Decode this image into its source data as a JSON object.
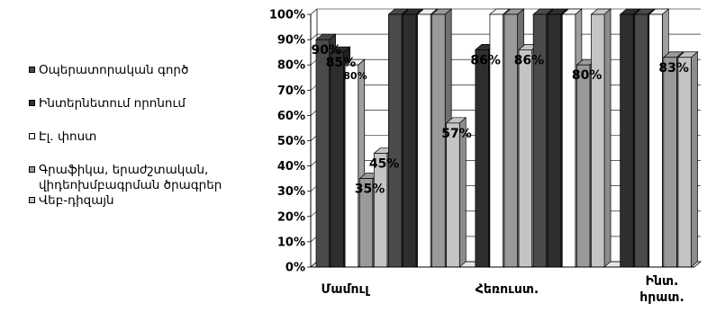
{
  "chart_data": {
    "type": "bar",
    "categories": [
      "Մամուլ",
      "Հեռուստ.",
      "Ինտ. հրատ."
    ],
    "series": [
      {
        "name": "Օպերատորական գործ",
        "color": "#4a4a4a",
        "values": [
          90,
          100,
          100
        ]
      },
      {
        "name": "Ինտերնետում որոնում",
        "color": "#2e2e2e",
        "values": [
          85,
          100,
          100
        ]
      },
      {
        "name": "Էլ. փոստ",
        "color": "#ffffff",
        "values": [
          80,
          100,
          100
        ]
      },
      {
        "name": "Գրաֆիկա, երաժշտական, վիդեոխմբագրման ծրագրեր",
        "color": "#9a9a9a",
        "values": [
          35,
          100,
          100
        ]
      },
      {
        "name": "Վեբ-դիզայն",
        "color": "#c4c4c4",
        "values": [
          45,
          57,
          100
        ]
      },
      {
        "name": "",
        "color": "#2e2e2e",
        "values": [
          null,
          86,
          100
        ]
      },
      {
        "name": "",
        "color": "#ffffff",
        "values": [
          null,
          100,
          100
        ]
      },
      {
        "name": "",
        "color": "#9a9a9a",
        "values": [
          null,
          100,
          83
        ]
      },
      {
        "name": "",
        "color": "#c4c4c4",
        "values": [
          null,
          86,
          83
        ]
      },
      {
        "name": "",
        "color": "#4a4a4a",
        "values": [
          null,
          100,
          null
        ]
      },
      {
        "name": "",
        "color": "#2e2e2e",
        "values": [
          null,
          100,
          null
        ]
      },
      {
        "name": "",
        "color": "#ffffff",
        "values": [
          null,
          100,
          null
        ]
      },
      {
        "name": "",
        "color": "#9a9a9a",
        "values": [
          null,
          80,
          null
        ]
      },
      {
        "name": "",
        "color": "#c4c4c4",
        "values": [
          null,
          100,
          null
        ]
      }
    ],
    "bars": [
      {
        "value": 90,
        "color": "#4a4a4a",
        "label": "90%"
      },
      {
        "value": 85,
        "color": "#2e2e2e",
        "label": "85%"
      },
      {
        "value": 80,
        "color": "#ffffff",
        "label": "80%"
      },
      {
        "value": 35,
        "color": "#9a9a9a",
        "label": "35%"
      },
      {
        "value": 45,
        "color": "#c4c4c4",
        "label": "45%"
      },
      {
        "value": 100,
        "color": "#4a4a4a",
        "label": ""
      },
      {
        "value": 100,
        "color": "#2e2e2e",
        "label": ""
      },
      {
        "value": 100,
        "color": "#ffffff",
        "label": ""
      },
      {
        "value": 100,
        "color": "#9a9a9a",
        "label": ""
      },
      {
        "value": 57,
        "color": "#c4c4c4",
        "label": "57%"
      },
      {
        "value": 0,
        "color": "#4a4a4a",
        "label": ""
      },
      {
        "value": 86,
        "color": "#2e2e2e",
        "label": "86%"
      },
      {
        "value": 100,
        "color": "#ffffff",
        "label": ""
      },
      {
        "value": 100,
        "color": "#9a9a9a",
        "label": ""
      },
      {
        "value": 86,
        "color": "#c4c4c4",
        "label": "86%"
      },
      {
        "value": 100,
        "color": "#4a4a4a",
        "label": ""
      },
      {
        "value": 100,
        "color": "#2e2e2e",
        "label": ""
      },
      {
        "value": 100,
        "color": "#ffffff",
        "label": ""
      },
      {
        "value": 80,
        "color": "#9a9a9a",
        "label": "80%"
      },
      {
        "value": 100,
        "color": "#c4c4c4",
        "label": ""
      },
      {
        "value": 0,
        "color": "#4a4a4a",
        "label": ""
      },
      {
        "value": 100,
        "color": "#2e2e2e",
        "label": ""
      },
      {
        "value": 100,
        "color": "#4a4a4a",
        "label": ""
      },
      {
        "value": 100,
        "color": "#ffffff",
        "label": ""
      },
      {
        "value": 83,
        "color": "#9a9a9a",
        "label": "83%"
      },
      {
        "value": 83,
        "color": "#c4c4c4",
        "label": ""
      }
    ],
    "y_ticks": [
      "0%",
      "10%",
      "20%",
      "30%",
      "40%",
      "50%",
      "60%",
      "70%",
      "80%",
      "90%",
      "100%"
    ],
    "ylim": [
      0,
      100
    ],
    "grid": true,
    "legend_position": "left",
    "title": "",
    "xlabel": "",
    "ylabel": ""
  },
  "legend": [
    {
      "label": "Օպերատորական գործ",
      "color": "#4a4a4a"
    },
    {
      "label": "Ինտերնետում որոնում",
      "color": "#2e2e2e"
    },
    {
      "label": "Էլ. փոստ",
      "color": "#ffffff"
    },
    {
      "label": "Գրաֆիկա, երաժշտական, վիդեոխմբագրման ծրագրեր",
      "color": "#9a9a9a"
    },
    {
      "label": "Վեբ-դիզայն",
      "color": "#c4c4c4"
    }
  ]
}
